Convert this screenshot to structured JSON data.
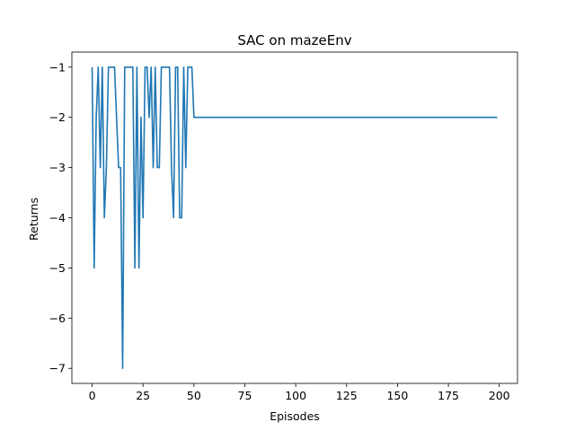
{
  "chart_data": {
    "type": "line",
    "title": "SAC on mazeEnv",
    "xlabel": "Episodes",
    "ylabel": "Returns",
    "xlim": [
      -9.95,
      208.95
    ],
    "ylim": [
      -7.3,
      -0.7
    ],
    "xticks": [
      0,
      25,
      50,
      75,
      100,
      125,
      150,
      175,
      200
    ],
    "yticks": [
      -7,
      -6,
      -5,
      -4,
      -3,
      -2,
      -1
    ],
    "xtick_labels": [
      "0",
      "25",
      "50",
      "75",
      "100",
      "125",
      "150",
      "175",
      "200"
    ],
    "ytick_labels": [
      "−7",
      "−6",
      "−5",
      "−4",
      "−3",
      "−2",
      "−1"
    ],
    "grid": false,
    "line_color": "#1f77b4",
    "series": [
      {
        "values_first_50": [
          -1,
          -5,
          -2,
          -1,
          -3,
          -1,
          -4,
          -3,
          -1,
          -1,
          -1,
          -1,
          -2,
          -3,
          -3,
          -7,
          -1,
          -1,
          -1,
          -1,
          -1,
          -5,
          -1,
          -5,
          -2,
          -4,
          -1,
          -1,
          -2,
          -1,
          -3,
          -1,
          -3,
          -3,
          -1,
          -1,
          -1,
          -1,
          -1,
          -3,
          -4,
          -1,
          -1,
          -4,
          -4,
          -1,
          -3,
          -1,
          -1,
          -1
        ],
        "values_rest": -2,
        "rest_until_episode": 199
      }
    ]
  }
}
